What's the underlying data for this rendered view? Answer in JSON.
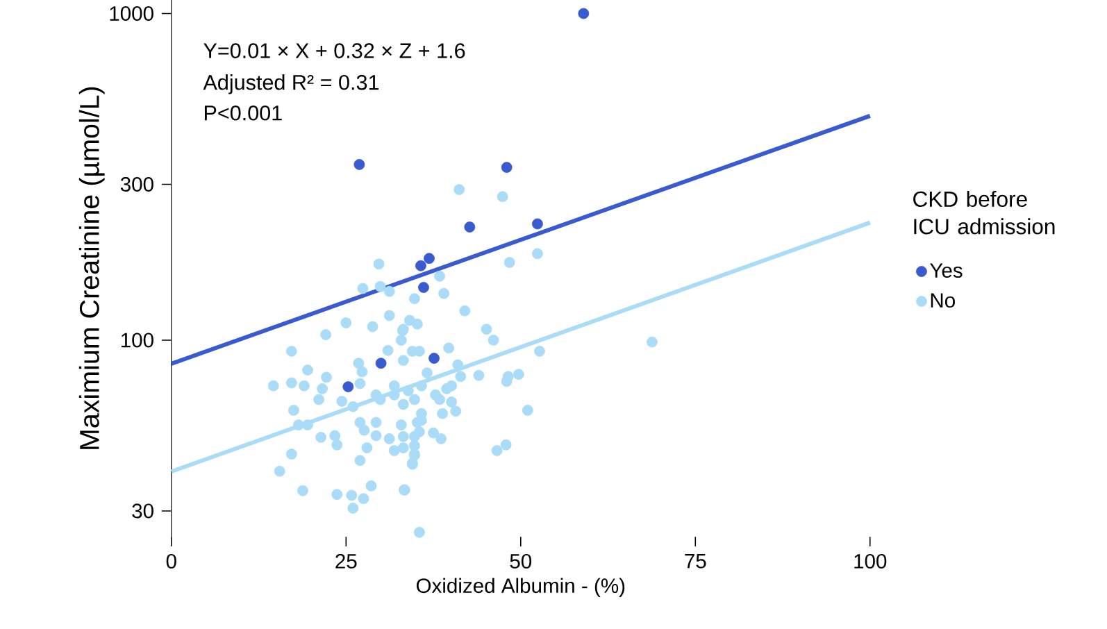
{
  "chart_data": {
    "type": "scatter",
    "xlabel": "Oxidized Albumin - (%)",
    "ylabel": "Maximium Creatinine (µmol/L)",
    "legend_title": "CKD before ICU admission",
    "legend": "right",
    "log": "y",
    "xlim": [
      0,
      100
    ],
    "ylim": [
      25,
      1100
    ],
    "xticks": [
      0,
      25,
      50,
      75,
      100
    ],
    "yticks": [
      30,
      100,
      300,
      1000
    ],
    "annotations": [
      "Y=0.01 × X + 0.32 × Z + 1.6",
      "Adjusted R² = 0.31",
      "P<0.001"
    ],
    "series": [
      {
        "type": "line",
        "color": "#3a5bd0",
        "x": [
          0,
          100
        ],
        "values": [
          84.7,
          486
        ]
      },
      {
        "type": "line",
        "color": "#aadcf7",
        "x": [
          0,
          100
        ],
        "values": [
          39.6,
          229
        ]
      },
      {
        "name": "Yes",
        "color": "#3a5bd0",
        "marker": "circle",
        "x": [
          59,
          26.9,
          48,
          42.7,
          52.4,
          35.7,
          36.9,
          36.1,
          37.6,
          30,
          25.3
        ],
        "values": [
          1000,
          345,
          338,
          222,
          227,
          169,
          178,
          145,
          88,
          85,
          72
        ]
      },
      {
        "name": "No",
        "color": "#aadcf7",
        "marker": "circle",
        "x": [
          29.7,
          27.4,
          29.9,
          31.2,
          34.8,
          31.2,
          25.0,
          28.8,
          22.1,
          17.2,
          34.1,
          35.2,
          33.1,
          32.9,
          31.0,
          34.5,
          26.8,
          27.3,
          19.5,
          22.2,
          17.2,
          14.6,
          19.0,
          21.6,
          27.0,
          21.1,
          24.4,
          26.0,
          29.9,
          31.9,
          33.9,
          29.3,
          17.5,
          18.2,
          19.5,
          27.0,
          29.3,
          32.9,
          27.6,
          23.4,
          23.7,
          21.4,
          29.3,
          28.0,
          31.2,
          33.2,
          31.9,
          17.2,
          27.0,
          34.8,
          34.5,
          15.5,
          18.8,
          23.7,
          25.8,
          27.5,
          28.6,
          26.0,
          33.4,
          35.5,
          31.9,
          33.2,
          34.8,
          35.8,
          35.8,
          35.2,
          34.8,
          52.4,
          48.4,
          38.4,
          39.0,
          42.0,
          45.1,
          46.1,
          33.2,
          39.7,
          35.5,
          33.2,
          52.7,
          41.0,
          36.6,
          41.4,
          44.0,
          48.2,
          49.7,
          48.0,
          40.1,
          39.4,
          37.8,
          38.4,
          40.1,
          40.7,
          38.8,
          51.0,
          35.8,
          35.5,
          37.5,
          38.6,
          33.2,
          47.9,
          46.6,
          34.8,
          34.8,
          34.5,
          33.3,
          68.8,
          41.2,
          47.4
        ],
        "values": [
          171,
          144,
          146,
          141,
          134,
          119,
          113,
          110,
          104,
          92.5,
          115,
          112,
          107,
          100,
          93,
          92.5,
          85,
          80,
          81,
          77,
          74,
          72.5,
          72.5,
          71,
          73.6,
          65.8,
          65,
          62.6,
          65.8,
          72.5,
          70,
          68,
          61,
          55,
          55,
          56,
          56,
          55,
          53,
          51,
          47.8,
          50.4,
          51,
          46.8,
          49.9,
          46.8,
          45.9,
          44.8,
          42.8,
          44.8,
          41.7,
          39.7,
          34.6,
          33.7,
          33.5,
          32.7,
          35.8,
          30.6,
          34.8,
          25.8,
          68,
          63.6,
          65.8,
          72.5,
          59.6,
          56,
          50.7,
          184,
          173,
          157,
          139,
          123,
          108,
          100,
          108,
          94.6,
          92.5,
          86.7,
          92.5,
          84,
          79.4,
          77.4,
          78,
          77.4,
          78.6,
          74.8,
          72.5,
          71,
          68,
          65.8,
          64.7,
          60.6,
          59.6,
          61,
          56.8,
          52.4,
          52,
          49.9,
          50.7,
          47.8,
          45.9,
          47.5,
          44.4,
          42,
          34.8,
          98.7,
          289,
          275
        ]
      }
    ]
  }
}
